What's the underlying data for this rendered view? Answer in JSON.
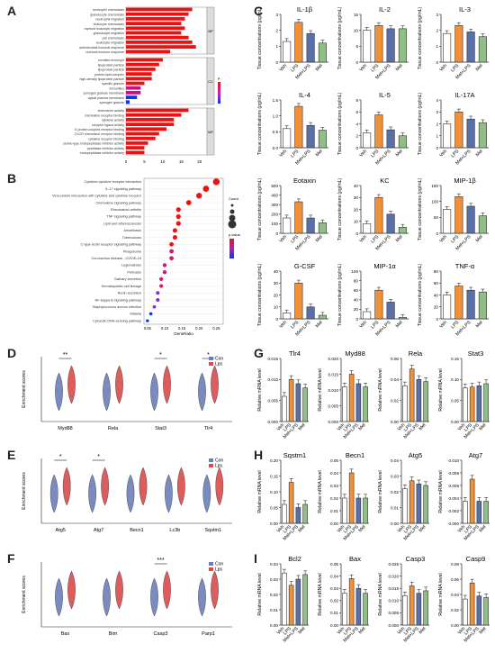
{
  "panel_labels": [
    "A",
    "B",
    "C",
    "D",
    "E",
    "F",
    "G",
    "H",
    "I"
  ],
  "colors": {
    "veh": "#ffffff",
    "lps": "#f0913a",
    "mel_lps": "#5a6fa8",
    "mel": "#8fbf84",
    "con": "#6b7fb8",
    "lps_violin": "#d94a4a",
    "go_red": "#ee1111",
    "go_blue": "#1133ee"
  },
  "groups": [
    "Veh",
    "LPS",
    "Mel+LPS",
    "Mel"
  ],
  "panelA": {
    "sections": [
      {
        "name": "BP",
        "terms": [
          "neutrophil chemotaxis",
          "granulocyte chemotaxis",
          "neutrophil migration",
          "leukocyte chemotaxis",
          "myeloid leukocyte migration",
          "granulocyte migration",
          "cell chemotaxis",
          "leukocyte migration",
          "antimicrobial humoral response",
          "humoral immune response"
        ],
        "values": [
          18,
          17,
          16,
          15,
          16,
          15,
          17,
          18,
          19,
          12
        ]
      },
      {
        "name": "CC",
        "terms": [
          "cornified envelope",
          "lipoprotein particle",
          "lipoprotein particle",
          "protein-lipid complex",
          "high-density lipoprotein particle",
          "specific granule",
          "microvillus",
          "zymogen granule membrane",
          "apical plasma membrane",
          "zymogen granule"
        ],
        "values": [
          10,
          9,
          8,
          7,
          7,
          5,
          4,
          4,
          3,
          1
        ]
      },
      {
        "name": "MF",
        "terms": [
          "chemokine activity",
          "chemokine receptor binding",
          "cytokine activity",
          "receptor ligand activity",
          "G protein-coupled receptor binding",
          "CXCR chemokine receptor binding",
          "cytokine receptor binding",
          "serine-type endopeptidase inhibitor activity",
          "peptidase inhibitor activity",
          "endopeptidase inhibitor activity"
        ],
        "values": [
          17,
          15,
          13,
          13,
          11,
          9,
          8,
          6,
          5,
          5
        ]
      }
    ],
    "xticks": [
      "0",
      "5",
      "10",
      "15",
      "20"
    ],
    "legend_title": "p.value"
  },
  "panelB": {
    "terms": [
      "Cytokine-cytokine receptor interaction",
      "IL-17 signaling pathway",
      "Viral protein interaction with cytokine and cytokine receptor",
      "Chemokine signaling pathway",
      "Rheumatoid arthritis",
      "TNF signaling pathway",
      "Lipid and atherosclerosis",
      "Amoebiasis",
      "Tuberculosis",
      "C-type lectin receptor signaling pathway",
      "Phagosome",
      "Coronavirus disease - COVID-19",
      "Legionellosis",
      "Pertussis",
      "Salivary secretion",
      "Hematopoietic cell lineage",
      "Renin secretion",
      "NF-kappa B signaling pathway",
      "Staphylococcus aureus infection",
      "Malaria",
      "Cytosolic DNA-sensing pathway"
    ],
    "gene_ratio": [
      0.25,
      0.22,
      0.2,
      0.17,
      0.14,
      0.14,
      0.14,
      0.13,
      0.13,
      0.12,
      0.12,
      0.12,
      0.1,
      0.1,
      0.09,
      0.09,
      0.08,
      0.08,
      0.07,
      0.06,
      0.05
    ],
    "xticks": [
      "0.05",
      "0.10",
      "0.15",
      "0.20",
      "0.25"
    ],
    "xlabel": "GeneRatio",
    "legend_count": "Count",
    "legend_p": "p.value"
  },
  "panelC": {
    "ylabel": "Tissue concentrations (pg/mL)",
    "charts": [
      {
        "title": "IL-1β",
        "values": [
          1.3,
          2.5,
          1.8,
          1.2
        ],
        "ymax": 3,
        "ticks": [
          "0",
          "1",
          "2",
          "3"
        ]
      },
      {
        "title": "IL-2",
        "values": [
          10,
          11.5,
          10.5,
          10.5
        ],
        "ymax": 15,
        "ticks": [
          "0",
          "5",
          "10",
          "15"
        ]
      },
      {
        "title": "IL-3",
        "values": [
          1.8,
          2.3,
          1.9,
          1.6
        ],
        "ymax": 3,
        "ticks": [
          "0",
          "1",
          "2",
          "3"
        ]
      },
      {
        "title": "IL-4",
        "values": [
          0.6,
          1.3,
          0.7,
          0.55
        ],
        "ymax": 1.5,
        "ticks": [
          "0.0",
          "0.5",
          "1.0",
          "1.5"
        ]
      },
      {
        "title": "IL-5",
        "values": [
          2.5,
          5.5,
          3,
          2
        ],
        "ymax": 8,
        "ticks": [
          "0",
          "2",
          "4",
          "6",
          "8"
        ]
      },
      {
        "title": "IL-17A",
        "values": [
          2,
          3,
          2.4,
          2.1
        ],
        "ymax": 4,
        "ticks": [
          "0",
          "1",
          "2",
          "3",
          "4"
        ]
      },
      {
        "title": "Eotaxin",
        "values": [
          160,
          330,
          160,
          110
        ],
        "ymax": 500,
        "ticks": [
          "0",
          "100",
          "200",
          "300",
          "400",
          "500"
        ]
      },
      {
        "title": "KC",
        "values": [
          8,
          30,
          16,
          5
        ],
        "ymax": 40,
        "ticks": [
          "0",
          "10",
          "20",
          "30",
          "40"
        ]
      },
      {
        "title": "MIP-1β",
        "values": [
          75,
          115,
          85,
          55
        ],
        "ymax": 150,
        "ticks": [
          "0",
          "50",
          "100",
          "150"
        ]
      },
      {
        "title": "G-CSF",
        "values": [
          5,
          30,
          10,
          3
        ],
        "ymax": 40,
        "ticks": [
          "0",
          "10",
          "20",
          "30",
          "40"
        ]
      },
      {
        "title": "MIP-1α",
        "values": [
          15,
          60,
          35,
          3
        ],
        "ymax": 100,
        "ticks": [
          "0",
          "20",
          "40",
          "60",
          "80",
          "100"
        ]
      },
      {
        "title": "TNF-α",
        "values": [
          40,
          55,
          48,
          45
        ],
        "ymax": 80,
        "ticks": [
          "0",
          "20",
          "40",
          "60",
          "80"
        ]
      }
    ]
  },
  "panelD": {
    "ylabel": "Enrichment scores",
    "genes": [
      "Myd88",
      "Rela",
      "Stat3",
      "Tlr4"
    ],
    "sig": [
      "**",
      "",
      "*",
      "*"
    ],
    "legend": [
      "Con",
      "Lps"
    ]
  },
  "panelE": {
    "ylabel": "Enrichment scores",
    "genes": [
      "Atg5",
      "Atg7",
      "Becn1",
      "Lc3b",
      "Sqstm1"
    ],
    "sig": [
      "*",
      "*",
      "",
      "",
      ""
    ],
    "legend": [
      "Con",
      "Lps"
    ]
  },
  "panelF": {
    "ylabel": "Enrichment scores",
    "genes": [
      "Bax",
      "Bim",
      "Casp3",
      "Parp1"
    ],
    "sig": [
      "",
      "",
      "***",
      ""
    ],
    "legend": [
      "Con",
      "Lps"
    ]
  },
  "panelG": {
    "ylabel": "Relative mRNA level",
    "charts": [
      {
        "title": "Tlr4",
        "values": [
          0.006,
          0.01,
          0.009,
          0.008
        ],
        "ymax": 0.015,
        "ticks": [
          "0.000",
          "0.005",
          "0.010",
          "0.015"
        ]
      },
      {
        "title": "Myd88",
        "values": [
          0.011,
          0.015,
          0.012,
          0.011
        ],
        "ymax": 0.02,
        "ticks": [
          "0.000",
          "0.005",
          "0.010",
          "0.015",
          "0.020"
        ]
      },
      {
        "title": "Rela",
        "values": [
          0.034,
          0.05,
          0.04,
          0.038
        ],
        "ymax": 0.06,
        "ticks": [
          "0.00",
          "0.02",
          "0.04",
          "0.06"
        ]
      },
      {
        "title": "Stat3",
        "values": [
          0.08,
          0.082,
          0.085,
          0.09
        ],
        "ymax": 0.15,
        "ticks": [
          "0.00",
          "0.05",
          "0.10",
          "0.15"
        ]
      }
    ]
  },
  "panelH": {
    "ylabel": "Relative mRNA level",
    "charts": [
      {
        "title": "Sqstm1",
        "values": [
          0.06,
          0.13,
          0.05,
          0.06
        ],
        "ymax": 0.2,
        "ticks": [
          "0.00",
          "0.05",
          "0.10",
          "0.15",
          "0.20"
        ]
      },
      {
        "title": "Becn1",
        "values": [
          0.02,
          0.04,
          0.02,
          0.02
        ],
        "ymax": 0.05,
        "ticks": [
          "0.00",
          "0.01",
          "0.02",
          "0.03",
          "0.04",
          "0.05"
        ]
      },
      {
        "title": "Atg5",
        "values": [
          0.022,
          0.027,
          0.025,
          0.024
        ],
        "ymax": 0.04,
        "ticks": [
          "0.00",
          "0.01",
          "0.02",
          "0.03",
          "0.04"
        ]
      },
      {
        "title": "Atg7",
        "values": [
          0.0035,
          0.007,
          0.0035,
          0.0035
        ],
        "ymax": 0.01,
        "ticks": [
          "0.000",
          "0.002",
          "0.004",
          "0.006",
          "0.008",
          "0.010"
        ]
      }
    ]
  },
  "panelI": {
    "ylabel": "Relative mRNA level",
    "charts": [
      {
        "title": "Bcl2",
        "values": [
          0.034,
          0.026,
          0.03,
          0.033
        ],
        "ymax": 0.04,
        "ticks": [
          "0.00",
          "0.01",
          "0.02",
          "0.03",
          "0.04"
        ]
      },
      {
        "title": "Bax",
        "values": [
          0.026,
          0.038,
          0.03,
          0.026
        ],
        "ymax": 0.05,
        "ticks": [
          "0.00",
          "0.01",
          "0.02",
          "0.03",
          "0.04",
          "0.05"
        ]
      },
      {
        "title": "Casp3",
        "values": [
          0.012,
          0.016,
          0.013,
          0.014
        ],
        "ymax": 0.025,
        "ticks": [
          "0.000",
          "0.005",
          "0.010",
          "0.015",
          "0.020",
          "0.025"
        ]
      },
      {
        "title": "Casp9",
        "values": [
          0.034,
          0.055,
          0.038,
          0.036
        ],
        "ymax": 0.08,
        "ticks": [
          "0.00",
          "0.02",
          "0.04",
          "0.06",
          "0.08"
        ]
      }
    ]
  }
}
